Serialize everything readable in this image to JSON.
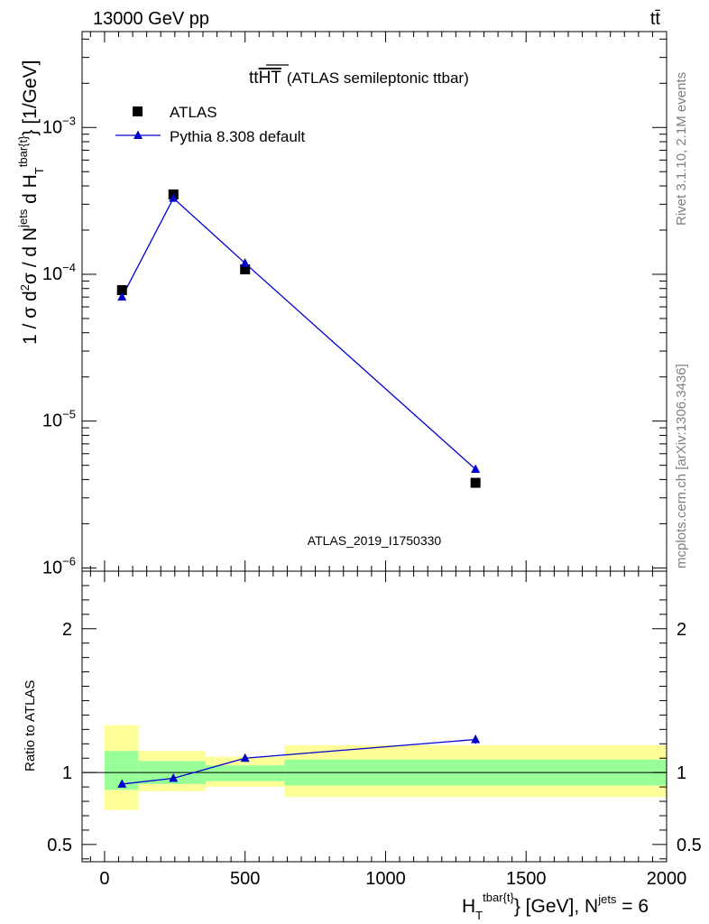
{
  "header": {
    "left": "13000 GeV pp",
    "right": "tt̄"
  },
  "side_labels": {
    "rivet": "Rivet 3.1.10,  2.1M events",
    "mcplots": "mcplots.cern.ch [arXiv:1306.3436]"
  },
  "colors": {
    "mc": "#0000cc",
    "data": "#000000",
    "band_inner": "#99ff99",
    "band_outer": "#ffff99",
    "side_text": "#808080"
  },
  "chart_data": [
    {
      "type": "scatter",
      "panel": "main",
      "title_prefix": "tt",
      "title_overlined": "HT",
      "title_suffix": "(ATLAS semileptonic ttbar)",
      "watermark": "ATLAS_2019_I1750330",
      "yscale": "log",
      "ylim": [
        9.5e-07,
        0.0045
      ],
      "xlim": [
        -80,
        2000
      ],
      "ylabel": "1 / σ d²σ / d N^jets d H_T^tbar{t} [1/GeV]",
      "yticks": [
        {
          "base": "10",
          "exp": "−3",
          "value": 0.001
        },
        {
          "base": "10",
          "exp": "−4",
          "value": 0.0001
        },
        {
          "base": "10",
          "exp": "−5",
          "value": 1e-05
        },
        {
          "base": "10",
          "exp": "−6",
          "value": 1e-06
        }
      ],
      "legend_position": "top-left",
      "series": [
        {
          "name": "ATLAS",
          "marker": "square",
          "x": [
            62,
            245,
            500,
            1320
          ],
          "y": [
            7.8e-05,
            0.00035,
            0.000108,
            3.8e-06
          ]
        },
        {
          "name": "Pythia 8.308 default",
          "marker": "triangle",
          "x": [
            62,
            245,
            500,
            1320
          ],
          "y": [
            7e-05,
            0.00033,
            0.000119,
            4.7e-06
          ]
        }
      ]
    },
    {
      "type": "line",
      "panel": "ratio",
      "ylabel": "Ratio to ATLAS",
      "ylim": [
        0.38,
        2.4
      ],
      "xlim": [
        -80,
        2000
      ],
      "xlabel": "H_T^tbar{t} [GeV], N^jets = 6",
      "xticks": [
        0,
        500,
        1000,
        1500,
        2000
      ],
      "yticks": [
        {
          "label": "0.5",
          "value": 0.5
        },
        {
          "label": "1",
          "value": 1
        },
        {
          "label": "2",
          "value": 2
        }
      ],
      "bins": [
        {
          "lo": 0,
          "hi": 120,
          "inner": [
            0.88,
            1.15
          ],
          "outer": [
            0.74,
            1.33
          ]
        },
        {
          "lo": 120,
          "hi": 360,
          "inner": [
            0.92,
            1.08
          ],
          "outer": [
            0.87,
            1.15
          ]
        },
        {
          "lo": 360,
          "hi": 640,
          "inner": [
            0.94,
            1.05
          ],
          "outer": [
            0.9,
            1.11
          ]
        },
        {
          "lo": 640,
          "hi": 2000,
          "inner": [
            0.91,
            1.09
          ],
          "outer": [
            0.83,
            1.19
          ]
        }
      ],
      "series": [
        {
          "name": "Pythia 8.308 default",
          "x": [
            62,
            245,
            500,
            1320
          ],
          "y": [
            0.92,
            0.96,
            1.1,
            1.23
          ]
        }
      ]
    }
  ]
}
